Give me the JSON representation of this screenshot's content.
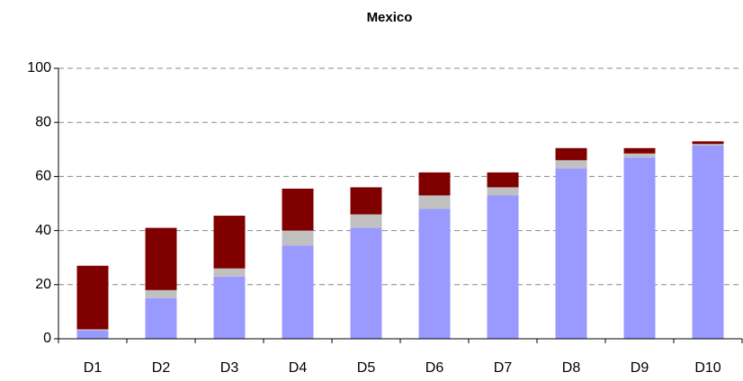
{
  "chart_data": {
    "type": "stacked_bar",
    "title": "Mexico",
    "categories": [
      "D1",
      "D2",
      "D3",
      "D4",
      "D5",
      "D6",
      "D7",
      "D8",
      "D9",
      "D10"
    ],
    "series": [
      {
        "color": "#9999ff",
        "values": [
          3,
          15,
          23,
          34.5,
          41,
          48,
          53,
          63,
          67,
          71.5
        ]
      },
      {
        "color": "#c0c0c0",
        "values": [
          0.5,
          3,
          3,
          5.5,
          5,
          5,
          3,
          3,
          1.5,
          0.5
        ]
      },
      {
        "color": "#800000",
        "values": [
          23.5,
          23,
          19.5,
          15.5,
          10,
          8.5,
          5.5,
          4.5,
          2,
          1
        ]
      }
    ],
    "ylim": [
      0,
      100
    ],
    "yticks": [
      0,
      20,
      40,
      60,
      80,
      100
    ],
    "grid": true
  }
}
